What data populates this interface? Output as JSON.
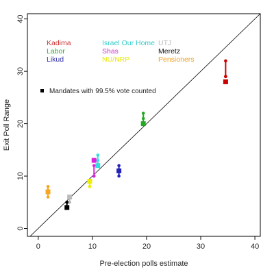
{
  "chart_data": {
    "type": "scatter",
    "xlabel": "Pre-election polls estimate",
    "ylabel": "Exit Poll Range",
    "xlim": [
      -2,
      41
    ],
    "ylim": [
      -1.5,
      41
    ],
    "xticks": [
      0,
      10,
      20,
      30,
      40
    ],
    "yticks": [
      0,
      10,
      20,
      30,
      40
    ],
    "identity_line": true,
    "legend": [
      {
        "name": "Kadima",
        "color": "#cc3333"
      },
      {
        "name": "Labor",
        "color": "#33aa33"
      },
      {
        "name": "Likud",
        "color": "#3333aa"
      },
      {
        "name": "Israel Our Home",
        "color": "#33cccc"
      },
      {
        "name": "Shas",
        "color": "#cc33cc"
      },
      {
        "name": "NU/NRP",
        "color": "#e8e800"
      },
      {
        "name": "UTJ",
        "color": "#bbbbbb"
      },
      {
        "name": "Meretz",
        "color": "#111111"
      },
      {
        "name": "Pensioners",
        "color": "#f0a020"
      }
    ],
    "note": "Mandates with 99.5% vote counted",
    "series": [
      {
        "name": "Kadima",
        "color": "#cc0000",
        "x": 34.6,
        "range": [
          29,
          32
        ],
        "mid": 29,
        "counted": 28
      },
      {
        "name": "Labor",
        "color": "#22aa22",
        "x": 19.4,
        "range": [
          20,
          22
        ],
        "mid": 21,
        "counted": 20
      },
      {
        "name": "Likud",
        "color": "#2222bb",
        "x": 14.9,
        "range": [
          10,
          12
        ],
        "mid": 11,
        "counted": 11
      },
      {
        "name": "Israel Our Home",
        "color": "#33dddd",
        "x": 11.0,
        "range": [
          12,
          14
        ],
        "mid": 13,
        "counted": 12
      },
      {
        "name": "Shas",
        "color": "#dd22dd",
        "x": 10.3,
        "range": [
          10,
          12
        ],
        "mid": 10,
        "counted": 13
      },
      {
        "name": "NU/NRP",
        "color": "#eeee00",
        "x": 9.5,
        "range": [
          8,
          9
        ],
        "mid": 8,
        "counted": 9
      },
      {
        "name": "UTJ",
        "color": "#bbbbbb",
        "x": 5.8,
        "range": [
          5,
          6
        ],
        "mid": 5,
        "counted": 6
      },
      {
        "name": "Meretz",
        "color": "#000000",
        "x": 5.3,
        "range": [
          4,
          5
        ],
        "mid": 5,
        "counted": 4
      },
      {
        "name": "Pensioners",
        "color": "#f5a623",
        "x": 1.8,
        "range": [
          6,
          8
        ],
        "mid": 7,
        "counted": 7
      }
    ]
  }
}
